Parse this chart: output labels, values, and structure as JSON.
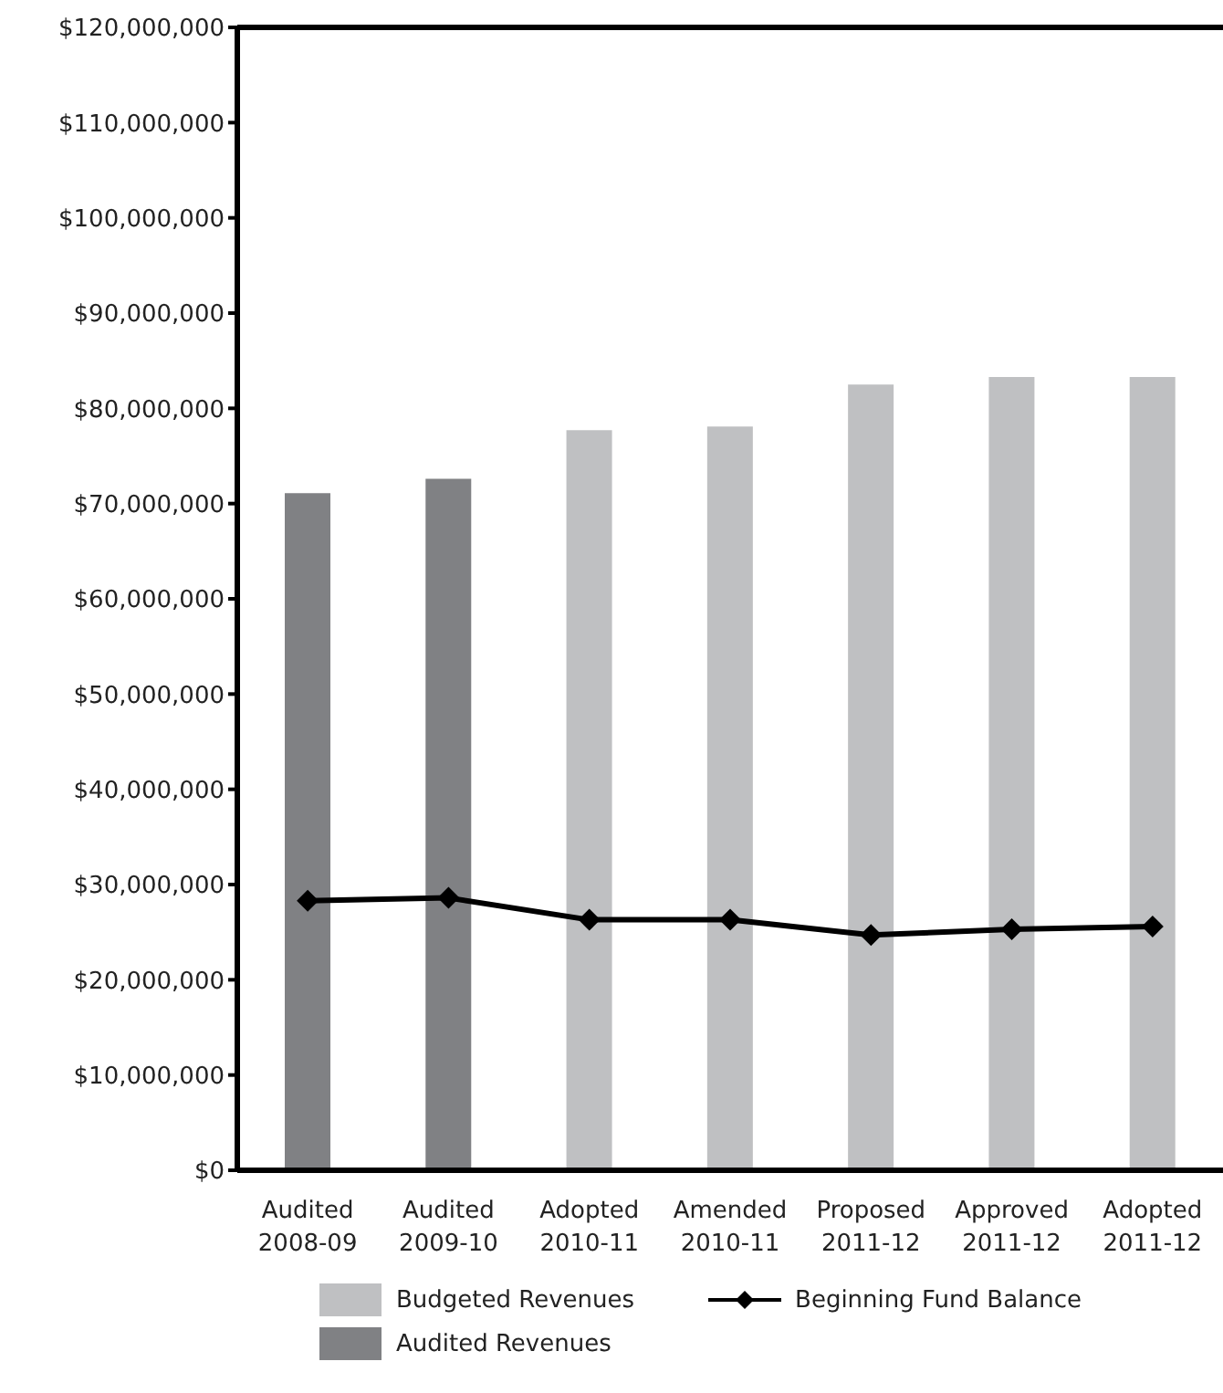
{
  "chart_data": {
    "type": "bar",
    "stacked": true,
    "categories": [
      "Audited 2008-09",
      "Audited 2009-10",
      "Adopted 2010-11",
      "Amended 2010-11",
      "Proposed 2011-12",
      "Approved 2011-12",
      "Adopted 2011-12"
    ],
    "series": [
      {
        "name": "Budgeted Revenues",
        "color": "#bfc0c2",
        "values": [
          null,
          null,
          77700000,
          78100000,
          82500000,
          83300000,
          83300000
        ]
      },
      {
        "name": "Audited Revenues",
        "color": "#808184",
        "values": [
          71100000,
          72600000,
          null,
          null,
          null,
          null,
          null
        ]
      },
      {
        "name": "Beginning Fund Balance",
        "type": "line",
        "color": "#000000",
        "marker": "diamond",
        "values": [
          28300000,
          28600000,
          26300000,
          26300000,
          24700000,
          25300000,
          25600000
        ]
      }
    ],
    "ylim": [
      0,
      120000000
    ],
    "yticks": [
      {
        "value": 0,
        "label": "$0"
      },
      {
        "value": 10000000,
        "label": "$10,000,000"
      },
      {
        "value": 20000000,
        "label": "$20,000,000"
      },
      {
        "value": 30000000,
        "label": "$30,000,000"
      },
      {
        "value": 40000000,
        "label": "$40,000,000"
      },
      {
        "value": 50000000,
        "label": "$50,000,000"
      },
      {
        "value": 60000000,
        "label": "$60,000,000"
      },
      {
        "value": 70000000,
        "label": "$70,000,000"
      },
      {
        "value": 80000000,
        "label": "$80,000,000"
      },
      {
        "value": 90000000,
        "label": "$90,000,000"
      },
      {
        "value": 100000000,
        "label": "$100,000,000"
      },
      {
        "value": 110000000,
        "label": "$110,000,000"
      },
      {
        "value": 120000000,
        "label": "$120,000,000"
      }
    ],
    "grid": false,
    "legend": "bottom"
  }
}
